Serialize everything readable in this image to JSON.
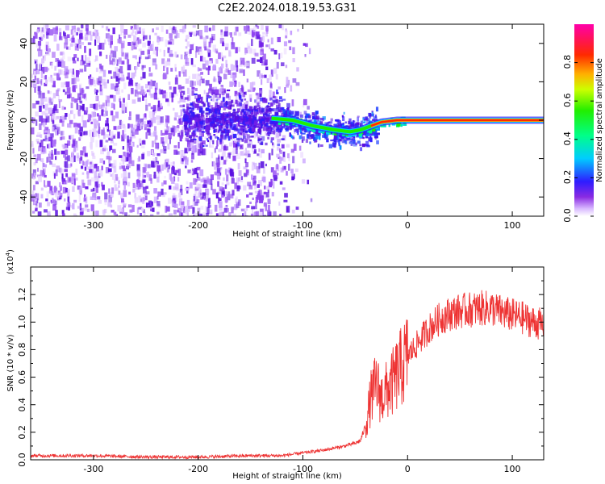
{
  "figure": {
    "title": "C2E2.2024.018.19.53.G31"
  },
  "chart_data": [
    {
      "type": "heatmap",
      "xlabel": "Height of straight line (km)",
      "ylabel": "Frequency (Hz)",
      "xlim": [
        -360,
        130
      ],
      "ylim": [
        -50,
        50
      ],
      "xticks": [
        -300,
        -200,
        -100,
        0,
        100
      ],
      "yticks": [
        -40,
        -20,
        0,
        20,
        40
      ],
      "colorbar": {
        "label": "Normalized spectral amplitude",
        "range": [
          0.0,
          1.0
        ],
        "ticks": [
          "0.0",
          "0.2",
          "0.4",
          "0.6",
          "0.8"
        ],
        "tick_values": [
          0.0,
          0.2,
          0.4,
          0.6,
          0.8
        ],
        "colormap": "rainbow: white(0) - violet - blue - cyan - green - yellow - orange - red - magenta(1)"
      },
      "features": {
        "noise_region_x": [
          -360,
          -110
        ],
        "doppler_line": {
          "x": [
            -130,
            -110,
            -90,
            -70,
            -55,
            -45,
            -35,
            -25,
            -10,
            0,
            20,
            130
          ],
          "y": [
            1,
            0,
            -3,
            -5,
            -6,
            -5,
            -3,
            -1,
            0,
            0,
            0,
            0
          ]
        }
      }
    },
    {
      "type": "line",
      "xlabel": "Height of straight line (km)",
      "ylabel": "SNR (10 * v/v)",
      "multiplier": "(x10",
      "multiplier_exp": "4",
      "multiplier_close": ")",
      "xlim": [
        -360,
        130
      ],
      "ylim": [
        0,
        1.4
      ],
      "xticks": [
        -300,
        -200,
        -100,
        0,
        100
      ],
      "yticks": [
        "0.0",
        "0.2",
        "0.4",
        "0.6",
        "0.8",
        "1.0",
        "1.2"
      ],
      "ytick_values": [
        0.0,
        0.2,
        0.4,
        0.6,
        0.8,
        1.0,
        1.2
      ],
      "series": [
        {
          "color": "#ee3333",
          "x": [
            -360,
            -300,
            -250,
            -200,
            -150,
            -120,
            -100,
            -80,
            -60,
            -50,
            -45,
            -40,
            -35,
            -30,
            -25,
            -20,
            -15,
            -10,
            0,
            10,
            20,
            30,
            40,
            50,
            60,
            70,
            80,
            90,
            100,
            110,
            120,
            130
          ],
          "values": [
            0.03,
            0.03,
            0.02,
            0.02,
            0.03,
            0.03,
            0.05,
            0.07,
            0.1,
            0.12,
            0.14,
            0.25,
            0.45,
            0.55,
            0.45,
            0.5,
            0.55,
            0.62,
            0.75,
            0.85,
            0.95,
            1.02,
            1.06,
            1.08,
            1.09,
            1.1,
            1.1,
            1.07,
            1.05,
            1.03,
            1.0,
            0.98
          ]
        }
      ]
    }
  ]
}
